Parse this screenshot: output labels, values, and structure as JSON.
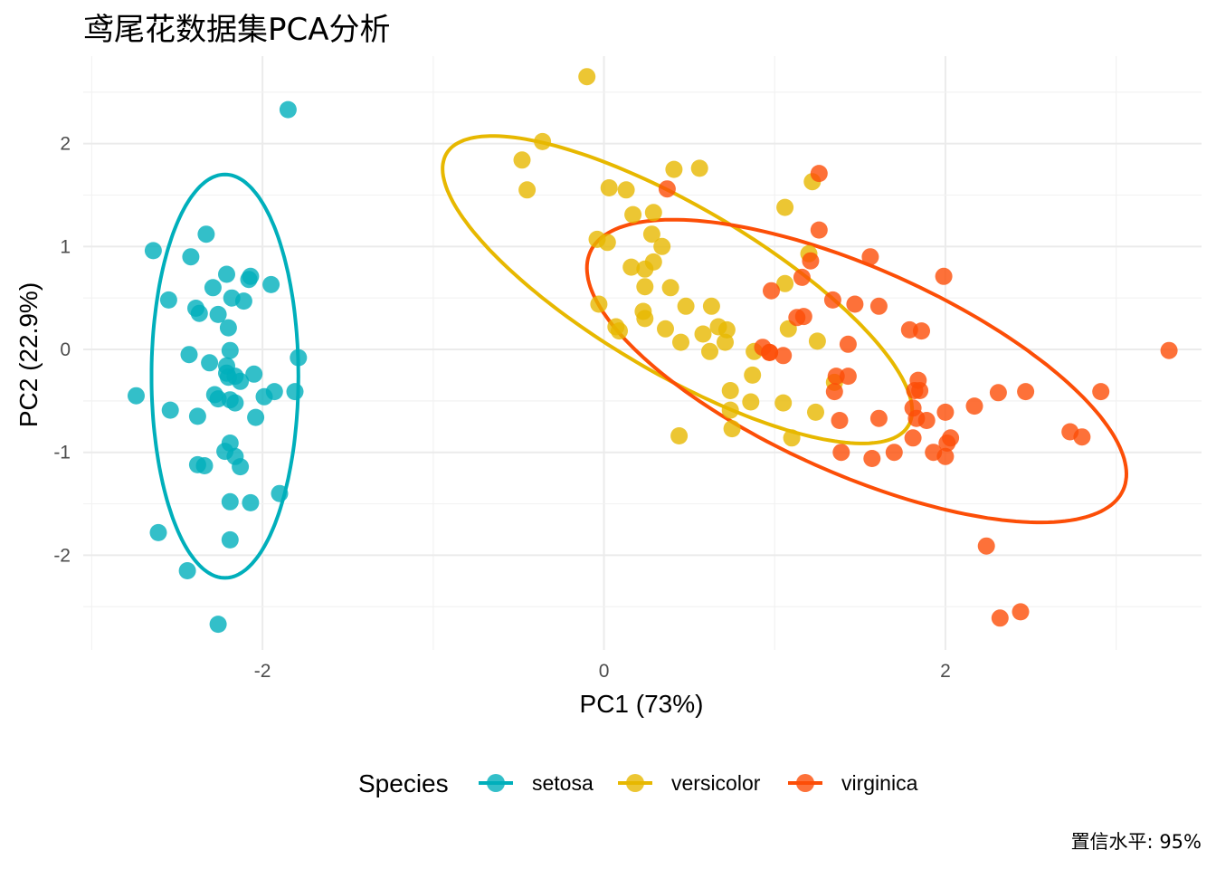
{
  "chart_data": {
    "type": "scatter",
    "title": "鸢尾花数据集PCA分析",
    "xlabel": "PC1 (73%)",
    "ylabel": "PC2 (22.9%)",
    "xlim": [
      -3.05,
      3.5
    ],
    "ylim": [
      -2.92,
      2.85
    ],
    "x_ticks": [
      -2,
      0,
      2
    ],
    "y_ticks": [
      -2,
      -1,
      0,
      1,
      2
    ],
    "grid": true,
    "legend": {
      "title": "Species",
      "position": "bottom"
    },
    "caption": "置信水平: 95%",
    "ellipse_level": 0.95,
    "series": [
      {
        "name": "setosa",
        "color": "#00AFBB",
        "ellipse": {
          "cx": -2.22,
          "cy": -0.26,
          "rx": 0.43,
          "ry": 1.96,
          "angle": 0
        },
        "points": [
          [
            -1.85,
            2.33
          ],
          [
            -2.33,
            1.12
          ],
          [
            -2.64,
            0.96
          ],
          [
            -2.42,
            0.9
          ],
          [
            -2.21,
            0.73
          ],
          [
            -2.07,
            0.71
          ],
          [
            -2.08,
            0.68
          ],
          [
            -1.95,
            0.63
          ],
          [
            -2.29,
            0.6
          ],
          [
            -2.55,
            0.48
          ],
          [
            -2.18,
            0.5
          ],
          [
            -2.11,
            0.47
          ],
          [
            -2.39,
            0.4
          ],
          [
            -2.37,
            0.35
          ],
          [
            -2.26,
            0.34
          ],
          [
            -2.2,
            0.21
          ],
          [
            -2.19,
            -0.01
          ],
          [
            -2.43,
            -0.05
          ],
          [
            -1.79,
            -0.08
          ],
          [
            -2.31,
            -0.13
          ],
          [
            -2.21,
            -0.16
          ],
          [
            -2.21,
            -0.23
          ],
          [
            -2.05,
            -0.24
          ],
          [
            -2.16,
            -0.26
          ],
          [
            -2.13,
            -0.31
          ],
          [
            -2.74,
            -0.45
          ],
          [
            -2.28,
            -0.44
          ],
          [
            -2.26,
            -0.48
          ],
          [
            -1.93,
            -0.41
          ],
          [
            -1.81,
            -0.41
          ],
          [
            -1.99,
            -0.46
          ],
          [
            -2.19,
            -0.49
          ],
          [
            -2.16,
            -0.52
          ],
          [
            -2.54,
            -0.59
          ],
          [
            -2.38,
            -0.65
          ],
          [
            -2.04,
            -0.66
          ],
          [
            -2.19,
            -0.91
          ],
          [
            -2.22,
            -0.99
          ],
          [
            -2.16,
            -1.04
          ],
          [
            -2.13,
            -1.14
          ],
          [
            -2.38,
            -1.12
          ],
          [
            -2.34,
            -1.13
          ],
          [
            -1.9,
            -1.4
          ],
          [
            -2.19,
            -1.48
          ],
          [
            -2.07,
            -1.49
          ],
          [
            -2.61,
            -1.78
          ],
          [
            -2.19,
            -1.85
          ],
          [
            -2.44,
            -2.15
          ],
          [
            -2.26,
            -2.67
          ],
          [
            -2.2,
            -0.27
          ]
        ]
      },
      {
        "name": "versicolor",
        "color": "#E7B800",
        "ellipse": {
          "cx": 0.43,
          "cy": 0.58,
          "rx": 1.92,
          "ry": 0.66,
          "angle": -48
        },
        "points": [
          [
            -0.1,
            2.65
          ],
          [
            -0.36,
            2.02
          ],
          [
            -0.48,
            1.84
          ],
          [
            0.41,
            1.75
          ],
          [
            0.56,
            1.76
          ],
          [
            -0.45,
            1.55
          ],
          [
            0.03,
            1.57
          ],
          [
            0.13,
            1.55
          ],
          [
            0.17,
            1.31
          ],
          [
            0.29,
            1.33
          ],
          [
            1.06,
            1.38
          ],
          [
            -0.04,
            1.07
          ],
          [
            0.02,
            1.04
          ],
          [
            0.28,
            1.12
          ],
          [
            0.34,
            1.0
          ],
          [
            0.16,
            0.8
          ],
          [
            0.24,
            0.78
          ],
          [
            0.29,
            0.85
          ],
          [
            0.24,
            0.61
          ],
          [
            0.39,
            0.6
          ],
          [
            -0.03,
            0.44
          ],
          [
            0.23,
            0.37
          ],
          [
            0.24,
            0.3
          ],
          [
            0.48,
            0.42
          ],
          [
            0.63,
            0.42
          ],
          [
            1.06,
            0.64
          ],
          [
            1.2,
            0.93
          ],
          [
            0.07,
            0.22
          ],
          [
            0.09,
            0.18
          ],
          [
            0.36,
            0.2
          ],
          [
            0.45,
            0.07
          ],
          [
            0.58,
            0.15
          ],
          [
            0.67,
            0.22
          ],
          [
            0.72,
            0.19
          ],
          [
            0.71,
            0.07
          ],
          [
            0.62,
            -0.02
          ],
          [
            0.88,
            -0.02
          ],
          [
            1.08,
            0.2
          ],
          [
            1.25,
            0.08
          ],
          [
            0.87,
            -0.25
          ],
          [
            0.74,
            -0.4
          ],
          [
            1.35,
            -0.32
          ],
          [
            0.86,
            -0.51
          ],
          [
            1.05,
            -0.52
          ],
          [
            0.74,
            -0.59
          ],
          [
            0.75,
            -0.77
          ],
          [
            1.24,
            -0.61
          ],
          [
            0.44,
            -0.84
          ],
          [
            1.1,
            -0.86
          ],
          [
            1.22,
            1.63
          ]
        ]
      },
      {
        "name": "virginica",
        "color": "#FC4E07",
        "ellipse": {
          "cx": 1.48,
          "cy": -0.21,
          "rx": 1.98,
          "ry": 0.86,
          "angle": -42
        },
        "points": [
          [
            1.26,
            1.71
          ],
          [
            0.37,
            1.56
          ],
          [
            1.26,
            1.16
          ],
          [
            1.21,
            0.86
          ],
          [
            1.56,
            0.9
          ],
          [
            1.16,
            0.7
          ],
          [
            1.99,
            0.71
          ],
          [
            0.98,
            0.57
          ],
          [
            1.34,
            0.48
          ],
          [
            1.47,
            0.44
          ],
          [
            1.61,
            0.42
          ],
          [
            1.13,
            0.31
          ],
          [
            1.17,
            0.32
          ],
          [
            1.79,
            0.19
          ],
          [
            1.86,
            0.18
          ],
          [
            1.43,
            0.05
          ],
          [
            0.93,
            0.02
          ],
          [
            0.97,
            -0.03
          ],
          [
            1.05,
            -0.06
          ],
          [
            1.36,
            -0.26
          ],
          [
            1.43,
            -0.26
          ],
          [
            1.84,
            -0.3
          ],
          [
            1.82,
            -0.4
          ],
          [
            1.85,
            -0.4
          ],
          [
            1.35,
            -0.41
          ],
          [
            2.47,
            -0.41
          ],
          [
            2.91,
            -0.41
          ],
          [
            2.31,
            -0.42
          ],
          [
            2.17,
            -0.55
          ],
          [
            1.81,
            -0.57
          ],
          [
            1.83,
            -0.67
          ],
          [
            1.89,
            -0.69
          ],
          [
            1.38,
            -0.69
          ],
          [
            1.61,
            -0.67
          ],
          [
            2.0,
            -0.61
          ],
          [
            2.03,
            -0.86
          ],
          [
            2.01,
            -0.91
          ],
          [
            1.81,
            -0.86
          ],
          [
            1.93,
            -1.0
          ],
          [
            2.0,
            -1.04
          ],
          [
            1.39,
            -1.0
          ],
          [
            1.57,
            -1.06
          ],
          [
            1.7,
            -1.0
          ],
          [
            2.73,
            -0.8
          ],
          [
            2.8,
            -0.85
          ],
          [
            2.24,
            -1.91
          ],
          [
            2.32,
            -2.61
          ],
          [
            2.44,
            -2.55
          ],
          [
            3.31,
            -0.01
          ],
          [
            0.97,
            -0.03
          ]
        ]
      }
    ]
  }
}
